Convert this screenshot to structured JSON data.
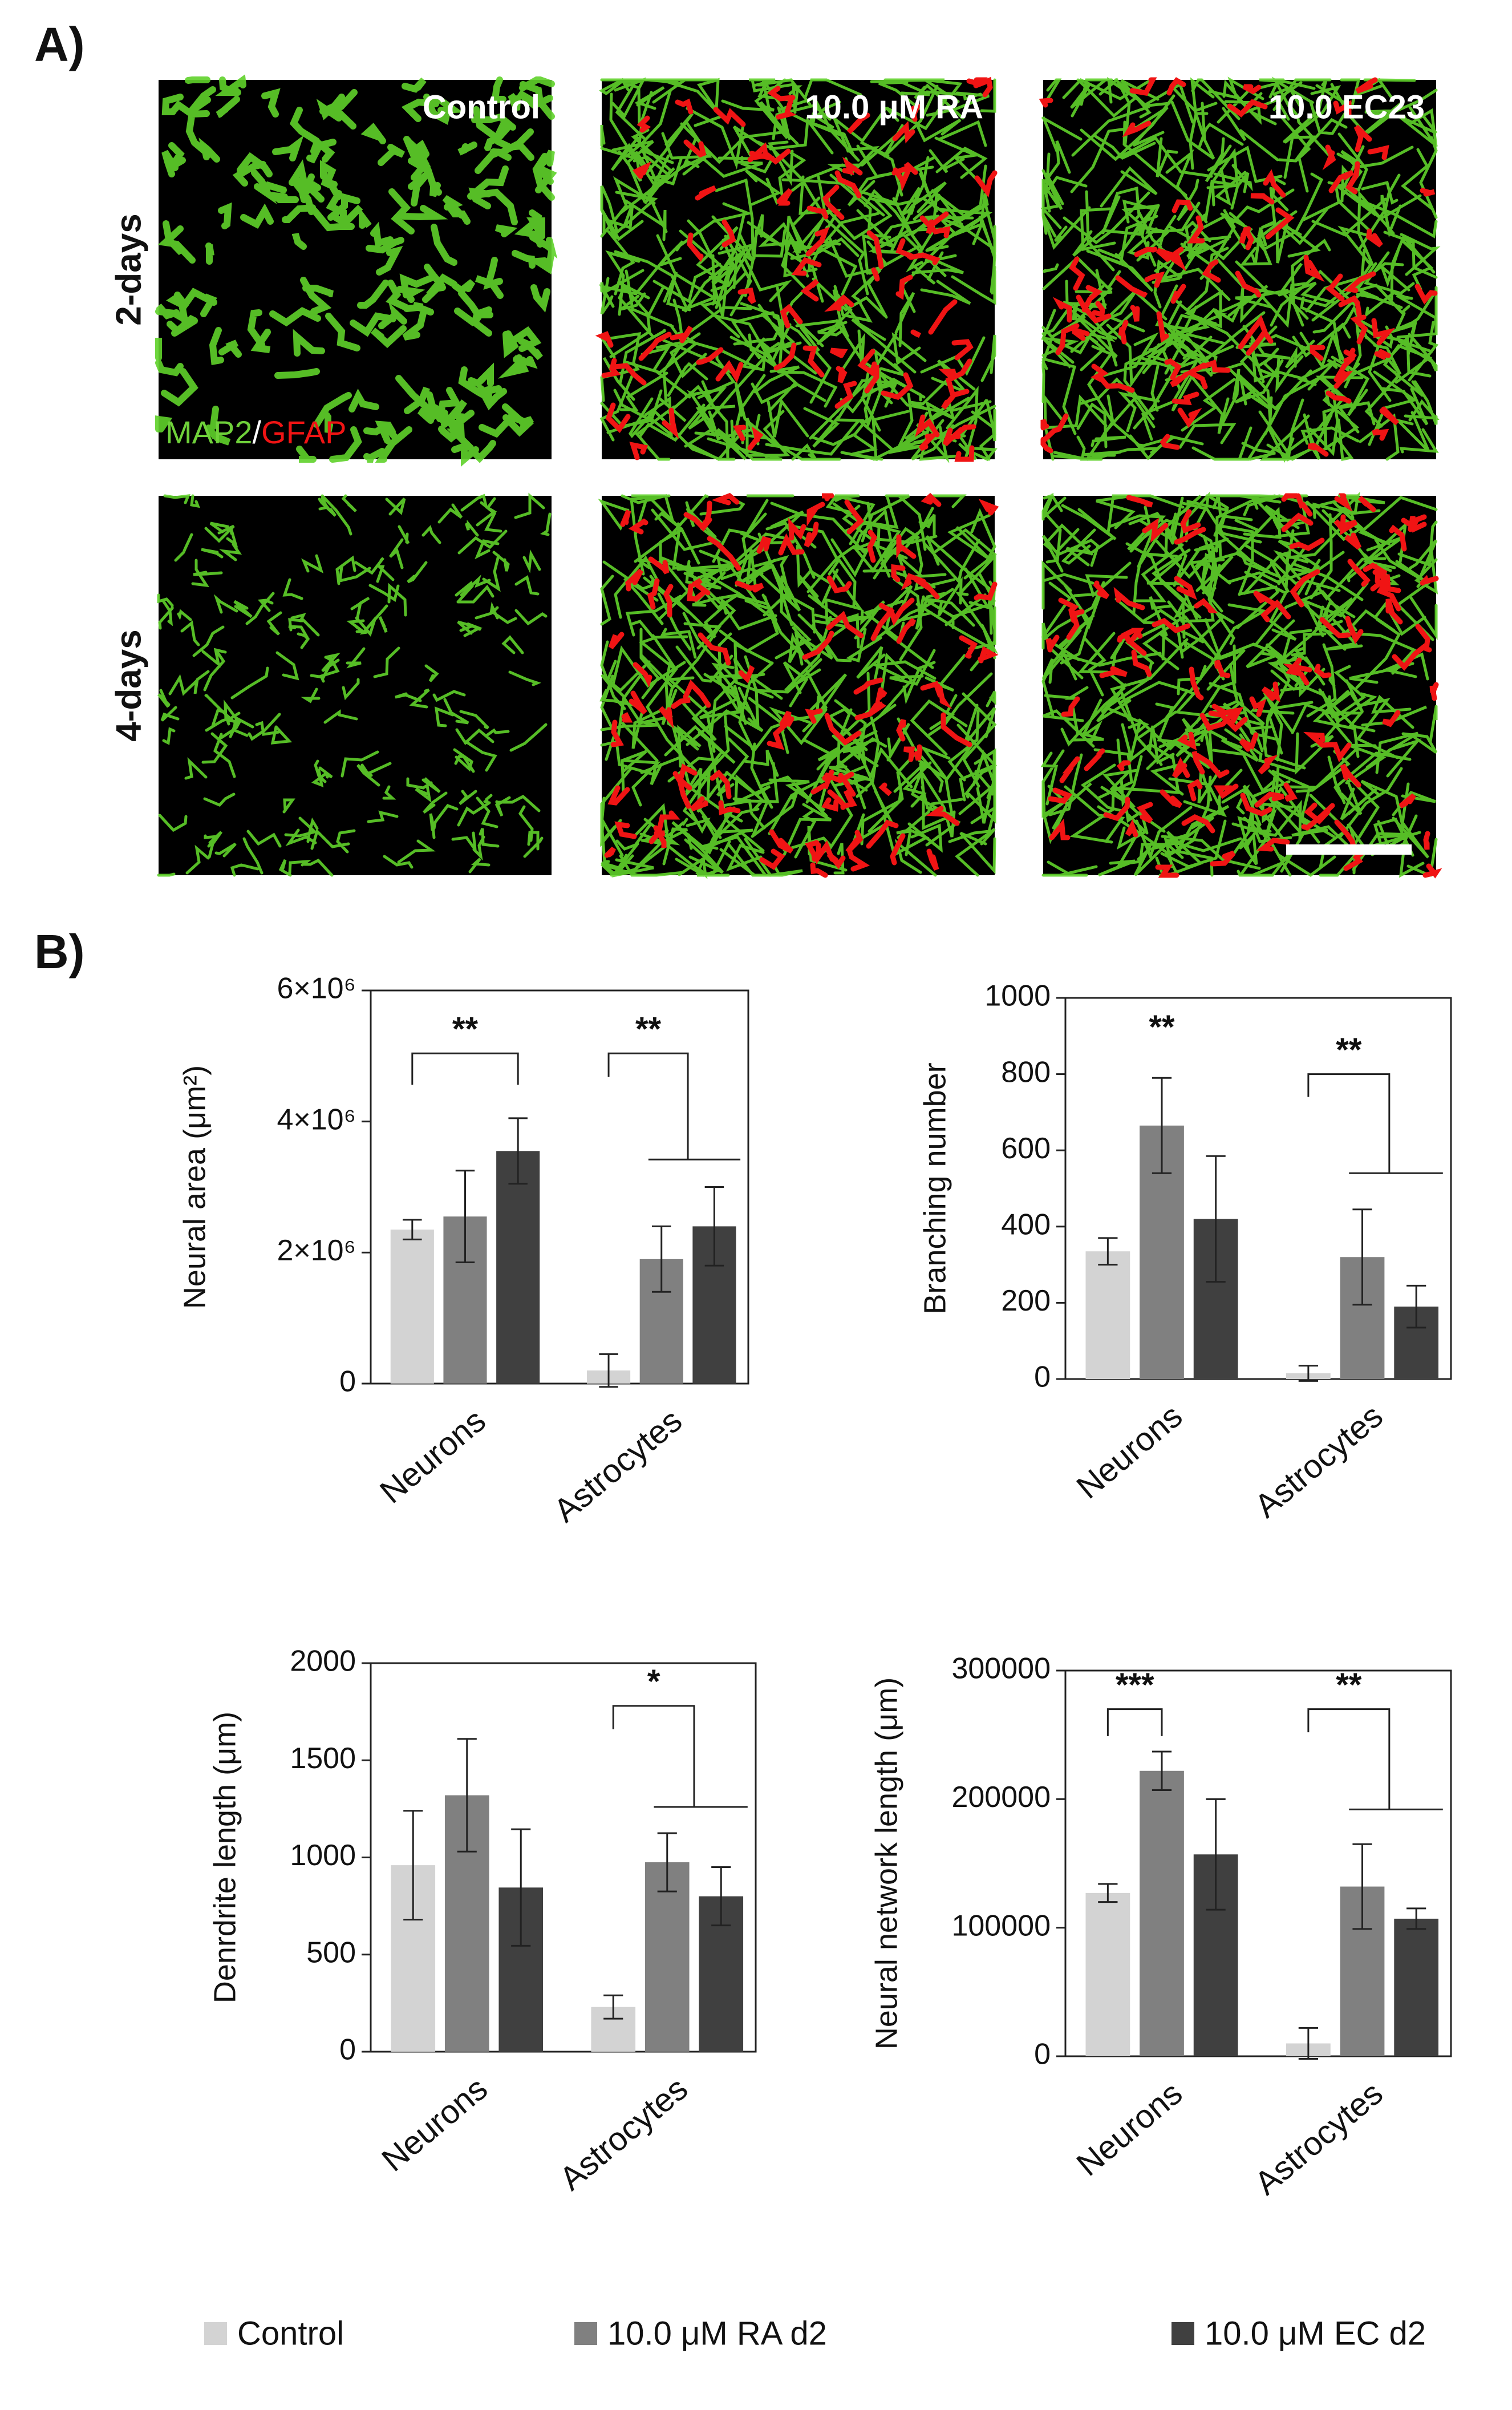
{
  "panel_a": {
    "label": "A)",
    "columns": [
      "Control",
      "10.0 μM RA",
      "10.0 EC23"
    ],
    "rows": [
      "2-days",
      "4-days"
    ],
    "stain": {
      "green": "MAP2",
      "separator": "/",
      "red": "GFAP"
    }
  },
  "panel_b": {
    "label": "B)"
  },
  "chart_data": [
    {
      "type": "bar",
      "y_label": "Neural area (μm²)",
      "categories": [
        "Neurons",
        "Astrocytes"
      ],
      "ylim": [
        0,
        6000000
      ],
      "yticks": [
        0,
        {
          "value": 2000000,
          "label": "2×10⁶"
        },
        {
          "value": 4000000,
          "label": "4×10⁶"
        },
        {
          "value": 6000000,
          "label": "6×10⁶"
        }
      ],
      "series": [
        {
          "name": "Control",
          "color": "#d3d3d3",
          "values": [
            2350000,
            200000
          ],
          "errors": [
            150000,
            250000
          ]
        },
        {
          "name": "10.0 μM RA d2",
          "color": "#808080",
          "values": [
            2550000,
            1900000
          ],
          "errors": [
            700000,
            500000
          ]
        },
        {
          "name": "10.0 μM EC d2",
          "color": "#404040",
          "values": [
            3550000,
            2400000
          ],
          "errors": [
            500000,
            600000
          ]
        }
      ],
      "annotations": [
        "**",
        "**"
      ]
    },
    {
      "type": "bar",
      "y_label": "Branching number",
      "categories": [
        "Neurons",
        "Astrocytes"
      ],
      "ylim": [
        0,
        1000
      ],
      "yticks": [
        0,
        200,
        400,
        600,
        800,
        1000
      ],
      "series": [
        {
          "color": "#d3d3d3",
          "values": [
            335,
            15
          ],
          "errors": [
            35,
            20
          ]
        },
        {
          "color": "#808080",
          "values": [
            665,
            320
          ],
          "errors": [
            125,
            125
          ]
        },
        {
          "color": "#404040",
          "values": [
            420,
            190
          ],
          "errors": [
            165,
            55
          ]
        }
      ],
      "annotations": [
        "**",
        "**"
      ]
    },
    {
      "type": "bar",
      "y_label": "Denrdrite length (μm)",
      "categories": [
        "Neurons",
        "Astrocytes"
      ],
      "ylim": [
        0,
        2000
      ],
      "yticks": [
        0,
        500,
        1000,
        1500,
        2000
      ],
      "series": [
        {
          "color": "#d3d3d3",
          "values": [
            960,
            230
          ],
          "errors": [
            280,
            60
          ]
        },
        {
          "color": "#808080",
          "values": [
            1320,
            975
          ],
          "errors": [
            290,
            150
          ]
        },
        {
          "color": "#404040",
          "values": [
            845,
            800
          ],
          "errors": [
            300,
            150
          ]
        }
      ],
      "annotations": [
        "*"
      ]
    },
    {
      "type": "bar",
      "y_label": "Neural network length (μm)",
      "categories": [
        "Neurons",
        "Astrocytes"
      ],
      "ylim": [
        0,
        300000
      ],
      "yticks": [
        0,
        100000,
        200000,
        300000
      ],
      "series": [
        {
          "color": "#d3d3d3",
          "values": [
            127000,
            10000
          ],
          "errors": [
            7000,
            12000
          ]
        },
        {
          "color": "#808080",
          "values": [
            222000,
            132000
          ],
          "errors": [
            15000,
            33000
          ]
        },
        {
          "color": "#404040",
          "values": [
            157000,
            107000
          ],
          "errors": [
            43000,
            8000
          ]
        }
      ],
      "annotations": [
        "***",
        "**"
      ]
    }
  ]
}
